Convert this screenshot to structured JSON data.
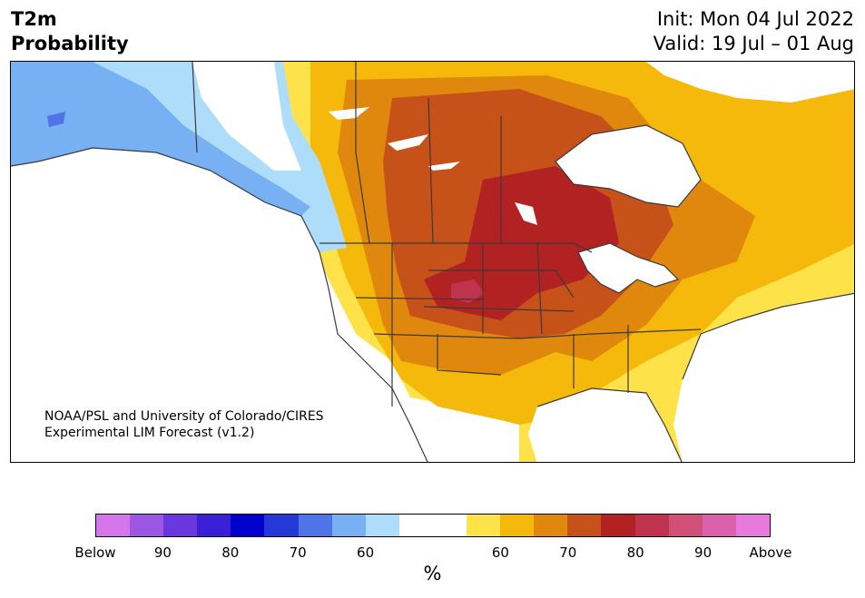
{
  "header": {
    "title_line1": "T2m",
    "title_line2": "Probability",
    "init": "Init: Mon 04 Jul 2022",
    "valid": "Valid: 19 Jul – 01 Aug"
  },
  "credit": {
    "line1": "NOAA/PSL and University of Colorado/CIRES",
    "line2": "Experimental LIM Forecast (v1.2)"
  },
  "colorbar": {
    "colors": [
      "#d475ec",
      "#9b56e4",
      "#6a36dd",
      "#3a1fd6",
      "#0000cc",
      "#2438d8",
      "#4f74e8",
      "#78b0f4",
      "#aedcfb",
      "#ffffff",
      "#ffffff",
      "#fee24a",
      "#f4b90a",
      "#e0880e",
      "#c75219",
      "#b22222",
      "#c0334f",
      "#d0507a",
      "#db61ac",
      "#e879dd"
    ],
    "tick_labels": [
      "Below",
      "90",
      "80",
      "70",
      "60",
      "60",
      "70",
      "80",
      "90",
      "Above"
    ],
    "unit": "%"
  },
  "map": {
    "variable": "T2m",
    "region": "North America",
    "palette": {
      "below_60": "#aedcfb",
      "below_70": "#78b0f4",
      "below_80": "#4f74e8",
      "above_60": "#fee24a",
      "above_70": "#f4b90a",
      "above_80": "#e0880e",
      "above_90": "#c75219",
      "peak": "#b22222",
      "peak_high": "#c0334f",
      "water": "#ffffff",
      "border": "#3a3a3a"
    }
  }
}
